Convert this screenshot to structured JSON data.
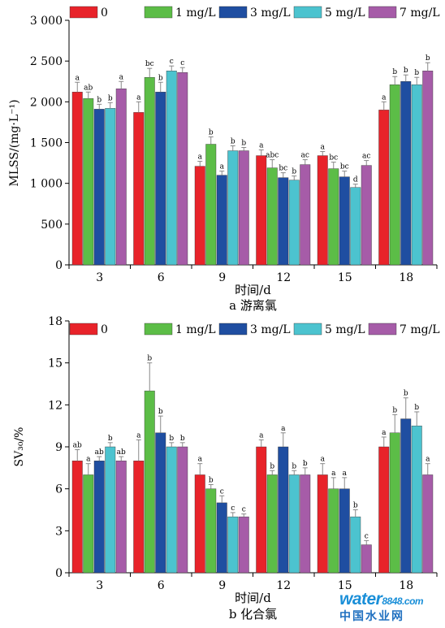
{
  "legend": [
    "0",
    "1 mg/L",
    "3 mg/L",
    "5 mg/L",
    "7 mg/L"
  ],
  "colors": [
    "#e8232a",
    "#5cbd47",
    "#1f4ea1",
    "#4cc3cf",
    "#a65ca8"
  ],
  "watermark": {
    "brand": "water",
    "num": "8848",
    "suffix": ".com",
    "cn": "中国水业网"
  },
  "chart_data": [
    {
      "type": "bar",
      "panel_label": "a 游离氯",
      "xlabel": "时间/d",
      "ylabel": "MLSS/(mg·L⁻¹)",
      "categories": [
        "3",
        "6",
        "9",
        "12",
        "15",
        "18"
      ],
      "ylim": [
        0,
        3000
      ],
      "yticks": [
        0,
        500,
        1000,
        1500,
        2000,
        2500,
        3000
      ],
      "ytick_labels": [
        "0",
        "500",
        "1 000",
        "1 500",
        "2 000",
        "2 500",
        "3 000"
      ],
      "series": [
        {
          "name": "0",
          "values": [
            2120,
            1870,
            1210,
            1340,
            1340,
            1900
          ],
          "errors": [
            120,
            130,
            60,
            70,
            50,
            100
          ],
          "letters": [
            "a",
            "a",
            "a",
            "a",
            "a",
            "a"
          ]
        },
        {
          "name": "1 mg/L",
          "values": [
            2040,
            2300,
            1480,
            1190,
            1180,
            2210
          ],
          "errors": [
            80,
            110,
            90,
            100,
            80,
            100
          ],
          "letters": [
            "ab",
            "bc",
            "b",
            "abc",
            "bc",
            "b"
          ]
        },
        {
          "name": "3 mg/L",
          "values": [
            1910,
            2120,
            1100,
            1070,
            1080,
            2250
          ],
          "errors": [
            60,
            120,
            50,
            60,
            70,
            80
          ],
          "letters": [
            "b",
            "b",
            "a",
            "bc",
            "bc",
            "b"
          ]
        },
        {
          "name": "5 mg/L",
          "values": [
            1920,
            2380,
            1400,
            1040,
            950,
            2210
          ],
          "errors": [
            70,
            60,
            60,
            50,
            40,
            90
          ],
          "letters": [
            "b",
            "c",
            "b",
            "b",
            "d",
            "b"
          ]
        },
        {
          "name": "7 mg/L",
          "values": [
            2160,
            2360,
            1400,
            1230,
            1220,
            2380
          ],
          "errors": [
            90,
            60,
            40,
            60,
            60,
            100
          ],
          "letters": [
            "a",
            "c",
            "b",
            "ac",
            "ac",
            "b"
          ]
        }
      ]
    },
    {
      "type": "bar",
      "panel_label": "b 化合氯",
      "xlabel": "时间/d",
      "ylabel": "SV₃₀/%",
      "categories": [
        "3",
        "6",
        "9",
        "12",
        "15",
        "18"
      ],
      "ylim": [
        0,
        18
      ],
      "yticks": [
        0,
        3,
        6,
        9,
        12,
        15,
        18
      ],
      "ytick_labels": [
        "0",
        "3",
        "6",
        "9",
        "12",
        "15",
        "18"
      ],
      "series": [
        {
          "name": "0",
          "values": [
            8,
            8,
            7,
            9,
            7,
            9
          ],
          "errors": [
            0.8,
            1.5,
            0.8,
            0.5,
            0.8,
            0.7
          ],
          "letters": [
            "ab",
            "a",
            "a",
            "a",
            "a",
            "a"
          ]
        },
        {
          "name": "1 mg/L",
          "values": [
            7,
            13,
            6,
            7,
            6,
            10
          ],
          "errors": [
            0.8,
            2.0,
            0.3,
            0.3,
            0.8,
            1.3
          ],
          "letters": [
            "a",
            "b",
            "b",
            "b",
            "a",
            "b"
          ]
        },
        {
          "name": "3 mg/L",
          "values": [
            8,
            10,
            5,
            9,
            6,
            11
          ],
          "errors": [
            0.3,
            1.2,
            0.5,
            1.0,
            0.8,
            1.5
          ],
          "letters": [
            "ab",
            "b",
            "c",
            "a",
            "a",
            "b"
          ]
        },
        {
          "name": "5 mg/L",
          "values": [
            9,
            9,
            4,
            7,
            4,
            10.5
          ],
          "errors": [
            0.3,
            0.3,
            0.3,
            0.3,
            0.5,
            1.0
          ],
          "letters": [
            "b",
            "b",
            "c",
            "b",
            "b",
            "b"
          ]
        },
        {
          "name": "7 mg/L",
          "values": [
            8,
            9,
            4,
            7,
            2,
            7
          ],
          "errors": [
            0.3,
            0.3,
            0.2,
            0.5,
            0.3,
            0.8
          ],
          "letters": [
            "ab",
            "b",
            "c",
            "b",
            "c",
            "a"
          ]
        }
      ]
    }
  ]
}
